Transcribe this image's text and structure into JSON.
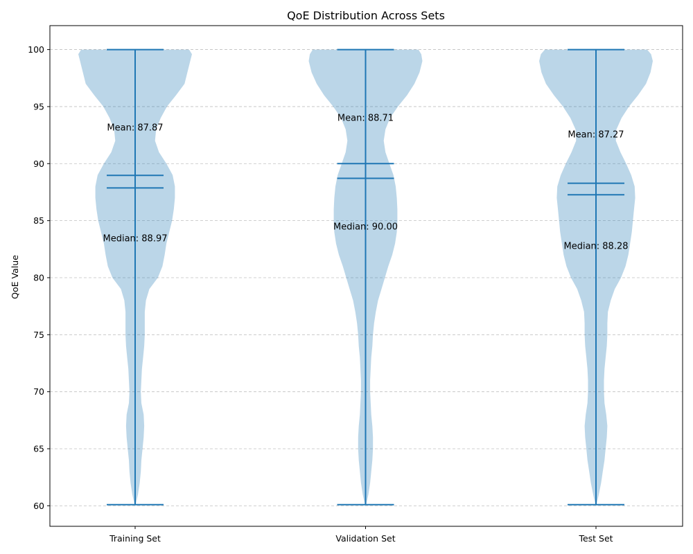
{
  "chart_data": {
    "type": "violin",
    "title": "QoE Distribution Across Sets",
    "xlabel": "",
    "ylabel": "QoE Value",
    "ylim": [
      58.2,
      102.1
    ],
    "yticks": [
      60,
      65,
      70,
      75,
      80,
      85,
      90,
      95,
      100
    ],
    "grid": "y",
    "color": "#1f77b4",
    "categories": [
      "Training Set",
      "Validation Set",
      "Test Set"
    ],
    "series": [
      {
        "category": "Training Set",
        "min": 60.1,
        "max": 100,
        "mean": 87.87,
        "median": 88.97,
        "mean_label": "Mean: 87.87",
        "median_label": "Median: 88.97",
        "density": [
          [
            60.1,
            0.01
          ],
          [
            61,
            0.05
          ],
          [
            62,
            0.08
          ],
          [
            63,
            0.1
          ],
          [
            64,
            0.11
          ],
          [
            65,
            0.13
          ],
          [
            66,
            0.15
          ],
          [
            67,
            0.16
          ],
          [
            68,
            0.15
          ],
          [
            69,
            0.11
          ],
          [
            70,
            0.1
          ],
          [
            71,
            0.11
          ],
          [
            72,
            0.12
          ],
          [
            73,
            0.14
          ],
          [
            74,
            0.16
          ],
          [
            75,
            0.17
          ],
          [
            76,
            0.17
          ],
          [
            77,
            0.17
          ],
          [
            78,
            0.19
          ],
          [
            79,
            0.25
          ],
          [
            80,
            0.4
          ],
          [
            81,
            0.48
          ],
          [
            82,
            0.52
          ],
          [
            83,
            0.55
          ],
          [
            84,
            0.6
          ],
          [
            85,
            0.65
          ],
          [
            86,
            0.68
          ],
          [
            87,
            0.7
          ],
          [
            88,
            0.7
          ],
          [
            89,
            0.66
          ],
          [
            90,
            0.55
          ],
          [
            91,
            0.42
          ],
          [
            92,
            0.35
          ],
          [
            93,
            0.37
          ],
          [
            94,
            0.45
          ],
          [
            95,
            0.56
          ],
          [
            96,
            0.72
          ],
          [
            97,
            0.87
          ],
          [
            98,
            0.92
          ],
          [
            99,
            0.97
          ],
          [
            99.6,
            1.0
          ],
          [
            100,
            0.95
          ]
        ]
      },
      {
        "category": "Validation Set",
        "min": 60.1,
        "max": 100,
        "mean": 88.71,
        "median": 90.0,
        "mean_label": "Mean: 88.71",
        "median_label": "Median: 90.00",
        "density": [
          [
            60.1,
            0.01
          ],
          [
            61,
            0.05
          ],
          [
            62,
            0.08
          ],
          [
            63,
            0.1
          ],
          [
            64,
            0.12
          ],
          [
            65,
            0.13
          ],
          [
            66,
            0.13
          ],
          [
            67,
            0.12
          ],
          [
            68,
            0.1
          ],
          [
            69,
            0.09
          ],
          [
            70,
            0.08
          ],
          [
            71,
            0.08
          ],
          [
            72,
            0.09
          ],
          [
            73,
            0.1
          ],
          [
            74,
            0.12
          ],
          [
            75,
            0.13
          ],
          [
            76,
            0.15
          ],
          [
            77,
            0.18
          ],
          [
            78,
            0.22
          ],
          [
            79,
            0.28
          ],
          [
            80,
            0.34
          ],
          [
            81,
            0.4
          ],
          [
            82,
            0.47
          ],
          [
            83,
            0.52
          ],
          [
            84,
            0.55
          ],
          [
            85,
            0.56
          ],
          [
            86,
            0.56
          ],
          [
            87,
            0.55
          ],
          [
            88,
            0.53
          ],
          [
            89,
            0.49
          ],
          [
            90,
            0.42
          ],
          [
            91,
            0.35
          ],
          [
            92,
            0.32
          ],
          [
            93,
            0.35
          ],
          [
            94,
            0.43
          ],
          [
            95,
            0.57
          ],
          [
            96,
            0.73
          ],
          [
            97,
            0.86
          ],
          [
            98,
            0.95
          ],
          [
            99,
            1.0
          ],
          [
            99.6,
            0.98
          ],
          [
            100,
            0.93
          ]
        ]
      },
      {
        "category": "Test Set",
        "min": 60.1,
        "max": 100,
        "mean": 87.27,
        "median": 88.28,
        "mean_label": "Mean: 87.27",
        "median_label": "Median: 88.28",
        "density": [
          [
            60.1,
            0.01
          ],
          [
            61,
            0.05
          ],
          [
            62,
            0.09
          ],
          [
            63,
            0.12
          ],
          [
            64,
            0.15
          ],
          [
            65,
            0.17
          ],
          [
            66,
            0.19
          ],
          [
            67,
            0.2
          ],
          [
            68,
            0.18
          ],
          [
            69,
            0.15
          ],
          [
            70,
            0.14
          ],
          [
            71,
            0.14
          ],
          [
            72,
            0.15
          ],
          [
            73,
            0.17
          ],
          [
            74,
            0.19
          ],
          [
            75,
            0.2
          ],
          [
            76,
            0.2
          ],
          [
            77,
            0.21
          ],
          [
            78,
            0.26
          ],
          [
            79,
            0.33
          ],
          [
            80,
            0.44
          ],
          [
            81,
            0.52
          ],
          [
            82,
            0.57
          ],
          [
            83,
            0.6
          ],
          [
            84,
            0.63
          ],
          [
            85,
            0.65
          ],
          [
            86,
            0.67
          ],
          [
            87,
            0.69
          ],
          [
            88,
            0.68
          ],
          [
            89,
            0.62
          ],
          [
            90,
            0.53
          ],
          [
            91,
            0.43
          ],
          [
            92,
            0.35
          ],
          [
            93,
            0.36
          ],
          [
            94,
            0.45
          ],
          [
            95,
            0.58
          ],
          [
            96,
            0.74
          ],
          [
            97,
            0.88
          ],
          [
            98,
            0.96
          ],
          [
            99,
            1.0
          ],
          [
            99.6,
            0.97
          ],
          [
            100,
            0.9
          ]
        ]
      }
    ]
  }
}
